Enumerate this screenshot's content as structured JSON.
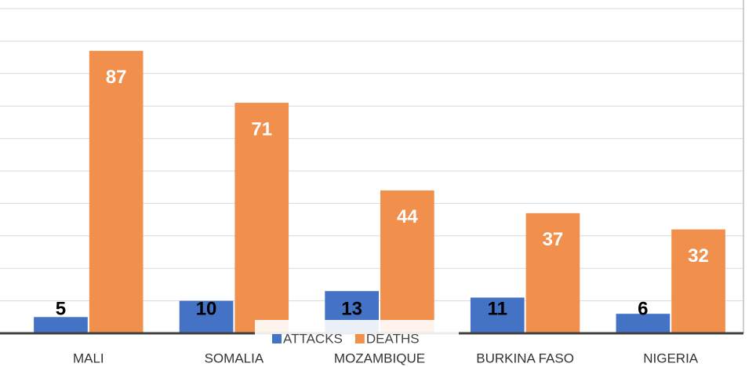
{
  "chart_data": {
    "type": "bar",
    "categories": [
      "MALI",
      "SOMALIA",
      "MOZAMBIQUE",
      "BURKINA FASO",
      "NIGERIA"
    ],
    "series": [
      {
        "name": "ATTACKS",
        "color": "#4472c4",
        "values": [
          5,
          10,
          13,
          11,
          6
        ]
      },
      {
        "name": "DEATHS",
        "color": "#f0904c",
        "values": [
          87,
          71,
          44,
          37,
          32
        ]
      }
    ],
    "ylim": [
      0,
      100
    ],
    "yticks": [
      0,
      10,
      20,
      30,
      40,
      50,
      60,
      70,
      80,
      90,
      100
    ],
    "grid": true
  }
}
